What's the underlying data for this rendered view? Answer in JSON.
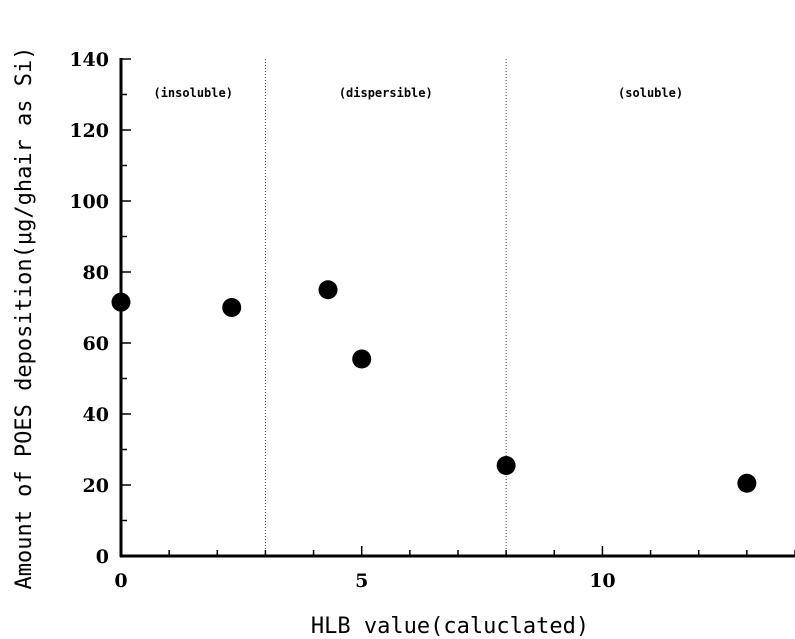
{
  "chart_data": {
    "type": "scatter",
    "xlabel": "HLB value(caluclated)",
    "ylabel": "Amount of POES deposition(μg/ghair as Si)",
    "xlim": [
      0,
      14
    ],
    "ylim": [
      0,
      140
    ],
    "x_ticks": [
      0,
      5,
      10
    ],
    "y_ticks": [
      0,
      20,
      40,
      60,
      80,
      100,
      120,
      140
    ],
    "x_minor_step": 1,
    "y_minor_step": 10,
    "grid": false,
    "regions": [
      {
        "label": "(insoluble)",
        "from": 0,
        "to": 3
      },
      {
        "label": "(dispersible)",
        "from": 3,
        "to": 8
      },
      {
        "label": "(soluble)",
        "from": 8,
        "to": 14
      }
    ],
    "region_boundaries": [
      3,
      8
    ],
    "marker_color": "#000000",
    "series": [
      {
        "x": [
          0,
          2.3,
          4.3,
          5.0,
          8.0,
          13.0
        ],
        "y": [
          71.5,
          70.0,
          75.0,
          55.5,
          25.5,
          20.5
        ]
      }
    ]
  }
}
